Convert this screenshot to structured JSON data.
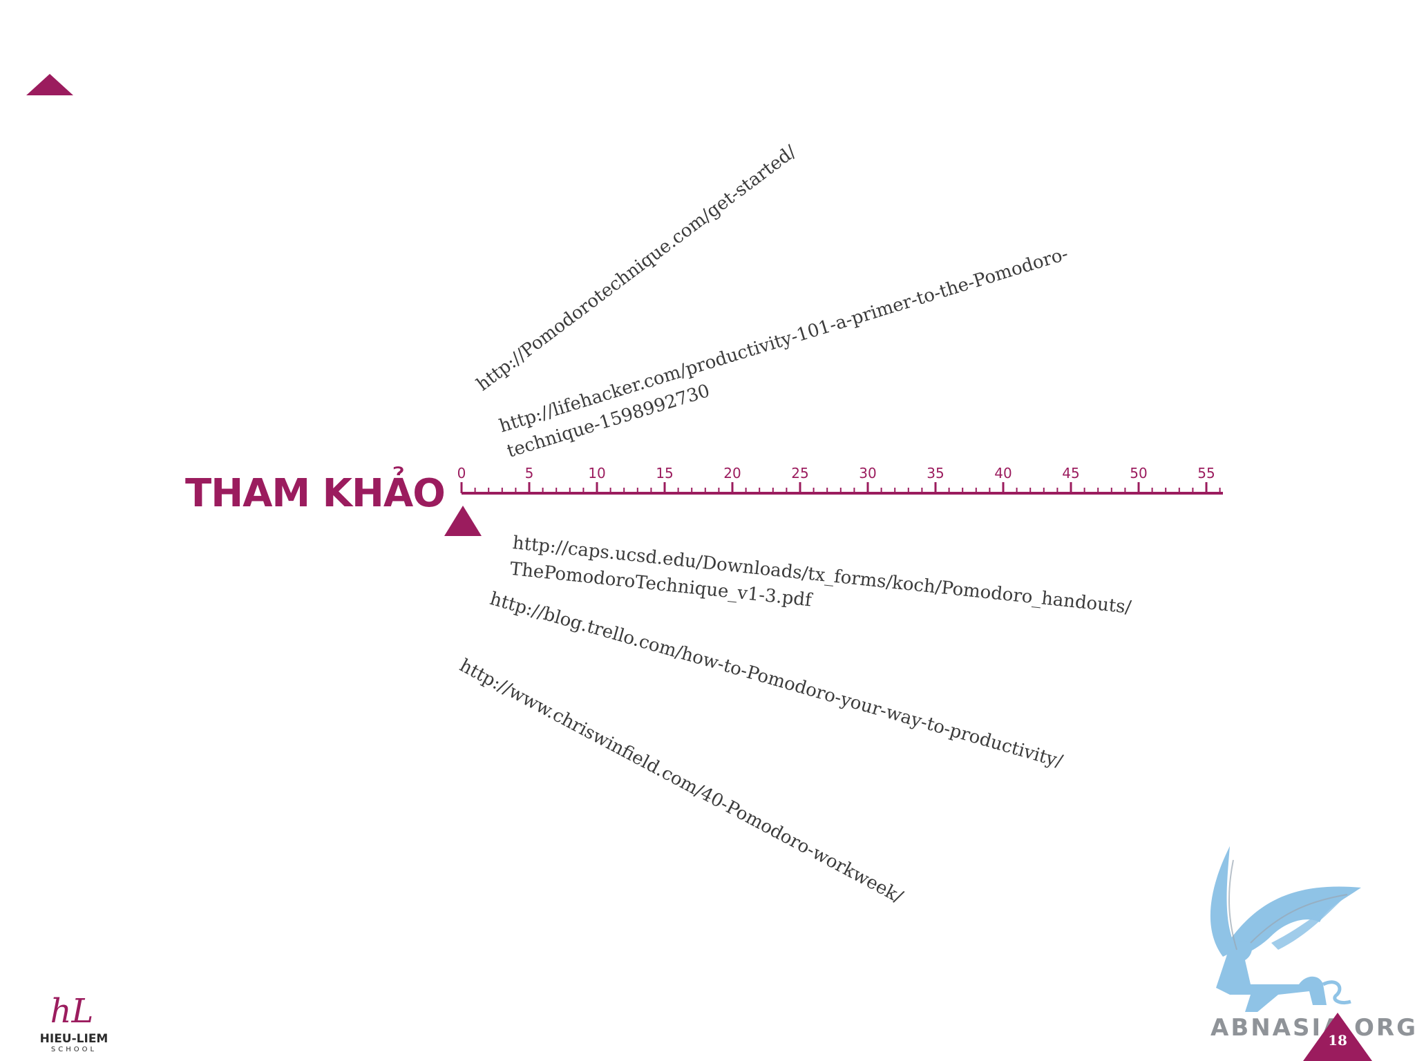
{
  "colors": {
    "accent": "#9b1c5e",
    "text": "#3b3b3b",
    "griffin": "#8fc3e6"
  },
  "title": "THAM KHẢO",
  "ruler": {
    "labels": [
      "0",
      "5",
      "10",
      "15",
      "20",
      "25",
      "30",
      "35",
      "40",
      "45",
      "50",
      "55"
    ],
    "max": 57
  },
  "references": [
    {
      "lines": [
        "http://Pomodorotechnique.com/get-started/"
      ]
    },
    {
      "lines": [
        "http://lifehacker.com/productivity-101-a-primer-to-the-Pomodoro-",
        "technique-1598992730"
      ]
    },
    {
      "lines": [
        "http://caps.ucsd.edu/Downloads/tx_forms/koch/Pomodoro_handouts/",
        "ThePomodoroTechnique_v1-3.pdf"
      ]
    },
    {
      "lines": [
        "http://blog.trello.com/how-to-Pomodoro-your-way-to-productivity/"
      ]
    },
    {
      "lines": [
        "http://www.chriswinfield.com/40-Pomodoro-workweek/"
      ]
    }
  ],
  "logo": {
    "mark": "hL",
    "name": "HIEU-LIEM",
    "tagline": "SCHOOL"
  },
  "watermark": "ABNASIA.ORG",
  "page_number": "18"
}
